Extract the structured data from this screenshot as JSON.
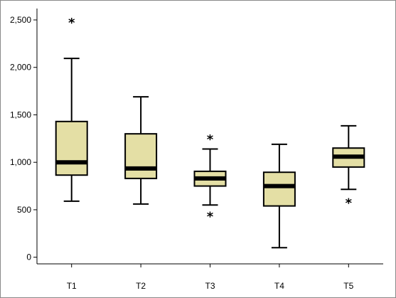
{
  "chart_data": {
    "type": "boxplot",
    "title": "",
    "xlabel": "",
    "ylabel": "",
    "categories": [
      "T1",
      "T2",
      "T3",
      "T4",
      "T5"
    ],
    "y_tick_labels": [
      "0",
      "500",
      "1,000",
      "1,500",
      "2,000",
      "2,500"
    ],
    "y_tick_values": [
      0,
      500,
      1000,
      1500,
      2000,
      2500
    ],
    "ylim": [
      -70,
      2620
    ],
    "grid": false,
    "legend": "none",
    "box_fill": "#e4dfa5",
    "boxes": [
      {
        "name": "T1",
        "whisker_low": 590,
        "q1": 865,
        "median": 1000,
        "q3": 1430,
        "whisker_high": 2095,
        "outliers": [
          2500
        ]
      },
      {
        "name": "T2",
        "whisker_low": 560,
        "q1": 830,
        "median": 935,
        "q3": 1300,
        "whisker_high": 1690,
        "outliers": []
      },
      {
        "name": "T3",
        "whisker_low": 550,
        "q1": 750,
        "median": 830,
        "q3": 905,
        "whisker_high": 1140,
        "outliers": [
          1270,
          460
        ]
      },
      {
        "name": "T4",
        "whisker_low": 100,
        "q1": 540,
        "median": 750,
        "q3": 895,
        "whisker_high": 1190,
        "outliers": []
      },
      {
        "name": "T5",
        "whisker_low": 715,
        "q1": 950,
        "median": 1060,
        "q3": 1150,
        "whisker_high": 1385,
        "outliers": [
          600
        ]
      }
    ]
  }
}
